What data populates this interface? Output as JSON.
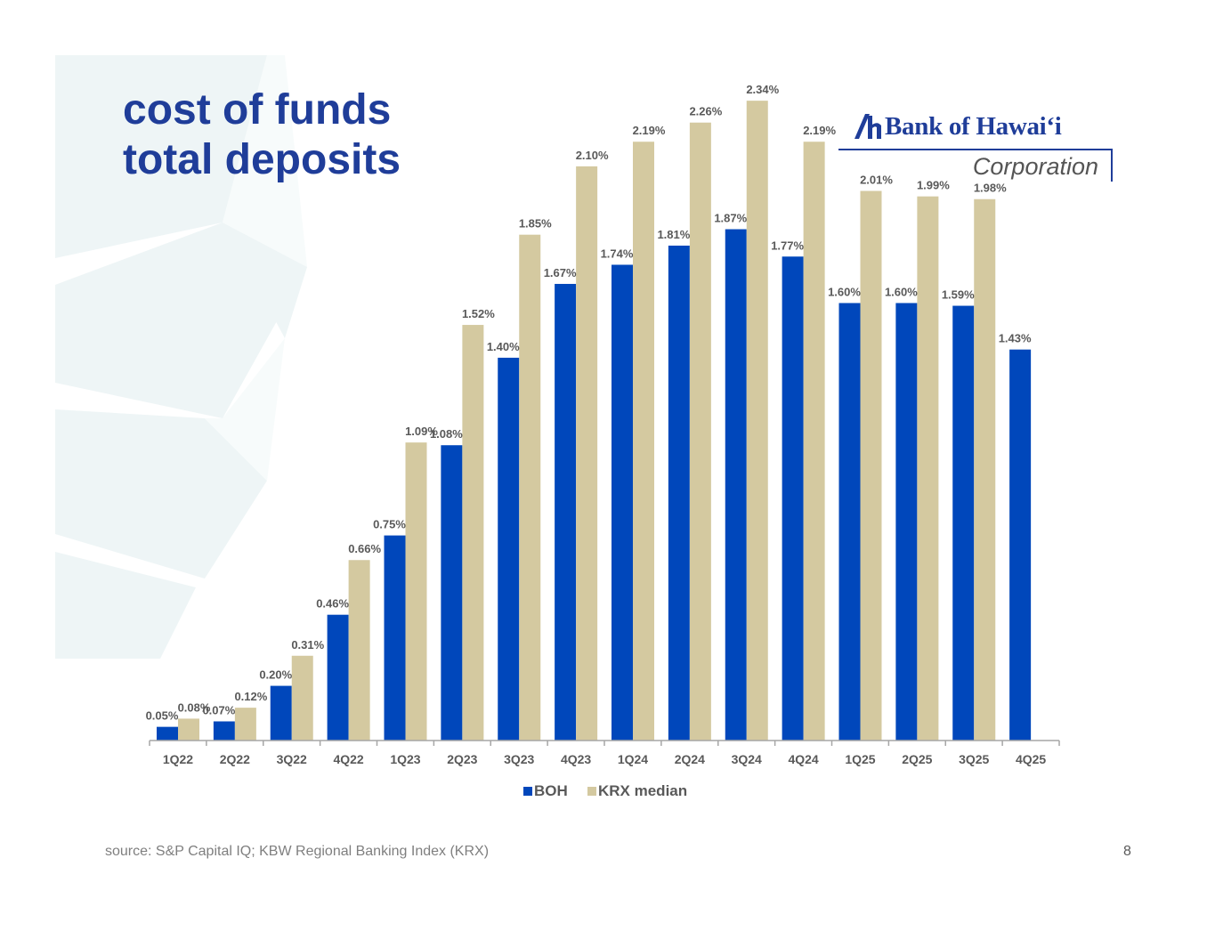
{
  "slide": {
    "title_line1": "cost of funds",
    "title_line2": "total deposits",
    "source": "source: S&P Capital IQ; KBW Regional Banking Index (KRX)",
    "page_number": "8"
  },
  "logo": {
    "name": "Bank of Hawaiʻi",
    "sub": "Corporation"
  },
  "colors": {
    "title": "#1f3d99",
    "boh": "#0047bb",
    "krx": "#d4c9a0",
    "label": "#595959"
  },
  "chart_data": {
    "type": "bar",
    "categories": [
      "1Q22",
      "2Q22",
      "3Q22",
      "4Q22",
      "1Q23",
      "2Q23",
      "3Q23",
      "4Q23",
      "1Q24",
      "2Q24",
      "3Q24",
      "4Q24",
      "1Q25",
      "2Q25",
      "3Q25",
      "4Q25"
    ],
    "series": [
      {
        "name": "BOH",
        "color": "#0047bb",
        "values": [
          0.05,
          0.07,
          0.2,
          0.46,
          0.75,
          1.08,
          1.4,
          1.67,
          1.74,
          1.81,
          1.87,
          1.77,
          1.6,
          1.6,
          1.59,
          1.43
        ],
        "labels": [
          "0.05%",
          "0.07%",
          "0.20%",
          "0.46%",
          "0.75%",
          "1.08%",
          "1.40%",
          "1.67%",
          "1.74%",
          "1.81%",
          "1.87%",
          "1.77%",
          "1.60%",
          "1.60%",
          "1.59%",
          "1.43%"
        ]
      },
      {
        "name": "KRX median",
        "color": "#d4c9a0",
        "values": [
          0.08,
          0.12,
          0.31,
          0.66,
          1.09,
          1.52,
          1.85,
          2.1,
          2.19,
          2.26,
          2.34,
          2.19,
          2.01,
          1.99,
          1.98,
          null
        ],
        "labels": [
          "0.08%",
          "0.12%",
          "0.31%",
          "0.66%",
          "1.09%",
          "1.52%",
          "1.85%",
          "2.10%",
          "2.19%",
          "2.26%",
          "2.34%",
          "2.19%",
          "2.01%",
          "1.99%",
          "1.98%",
          ""
        ]
      }
    ],
    "ylim": [
      0,
      2.5
    ],
    "grid": false,
    "legend": "bottom"
  }
}
